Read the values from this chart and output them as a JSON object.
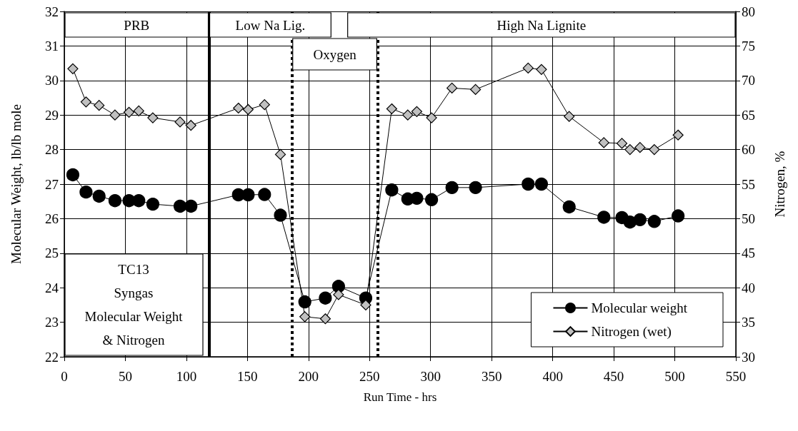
{
  "chart_data": {
    "type": "line",
    "xlabel": "Run Time - hrs",
    "ylabel": "Molecular Weight, lb/lb mole",
    "y2label": "Nitrogen, %",
    "series": [
      {
        "name": "Molecular weight",
        "color": "#000000",
        "marker": "circle",
        "x": [
          7,
          17.8,
          28.5,
          41.5,
          53,
          61,
          72.5,
          94.8,
          103.7,
          142.6,
          150.6,
          164,
          177,
          197,
          213.8,
          224.6,
          246.9,
          268.2,
          281.3,
          288.7,
          300.8,
          317.5,
          336.8,
          379.9,
          390.8,
          413.5,
          441.9,
          456.7,
          463.3,
          471.5,
          483.2,
          502.7
        ],
        "values": [
          27.27,
          26.77,
          26.65,
          26.52,
          26.52,
          26.52,
          26.42,
          26.36,
          26.36,
          26.69,
          26.69,
          26.7,
          26.1,
          23.59,
          23.7,
          24.04,
          23.7,
          26.83,
          26.57,
          26.59,
          26.55,
          26.9,
          26.9,
          27.0,
          27.0,
          26.34,
          26.04,
          26.03,
          25.9,
          25.97,
          25.92,
          26.08
        ]
      },
      {
        "name": "Nitrogen (wet)",
        "color": "#c0c0c0",
        "marker": "diamond",
        "axis": "y2",
        "x": [
          7,
          17.8,
          28.5,
          41.5,
          53,
          61,
          72.5,
          94.8,
          103.7,
          142.6,
          150.6,
          164,
          177,
          197,
          213.8,
          224.6,
          246.9,
          268.2,
          281.3,
          288.7,
          300.8,
          317.5,
          336.8,
          379.9,
          390.8,
          413.5,
          441.9,
          456.7,
          463.3,
          471.5,
          483.2,
          502.7
        ],
        "values": [
          71.7,
          66.9,
          66.4,
          65.0,
          65.4,
          65.6,
          64.6,
          64.0,
          63.5,
          66.0,
          65.8,
          66.5,
          59.3,
          35.8,
          35.5,
          39.0,
          37.5,
          65.9,
          65.0,
          65.5,
          64.6,
          68.9,
          68.7,
          71.8,
          71.6,
          64.8,
          61.0,
          60.9,
          60.0,
          60.3,
          60.0,
          62.1
        ]
      }
    ],
    "xlim": [
      0,
      550
    ],
    "xticks": [
      0,
      50,
      100,
      150,
      200,
      250,
      300,
      350,
      400,
      450,
      500,
      550
    ],
    "ylim": [
      22,
      32
    ],
    "yticks": [
      22,
      23,
      24,
      25,
      26,
      27,
      28,
      29,
      30,
      31,
      32
    ],
    "y2lim": [
      30,
      80
    ],
    "y2ticks": [
      30,
      35,
      40,
      45,
      50,
      55,
      60,
      65,
      70,
      75,
      80
    ],
    "ref_lines": [
      {
        "axis": "x",
        "value": 118.5,
        "line_style": "solid",
        "color": "#000000"
      },
      {
        "axis": "x",
        "value": 186.5,
        "line_style": "dotted",
        "color": "#000000"
      },
      {
        "axis": "x",
        "value": 256.5,
        "line_style": "dotted",
        "color": "#000000"
      }
    ],
    "bands": [
      {
        "axis": "x",
        "from": 0,
        "to": 118.5,
        "label": "PRB"
      },
      {
        "axis": "x",
        "from": 118.5,
        "to": 219,
        "label": "Low Na Lig."
      },
      {
        "axis": "x",
        "from": 231.5,
        "to": 550,
        "label": "High Na Lignite"
      },
      {
        "axis": "x",
        "from": 186.5,
        "to": 256.5,
        "label": "Oxygen"
      }
    ],
    "annotations": [
      "TC13\nSyngas\nMolecular Weight\n& Nitrogen"
    ],
    "grid": true,
    "legend": "bottom right"
  }
}
